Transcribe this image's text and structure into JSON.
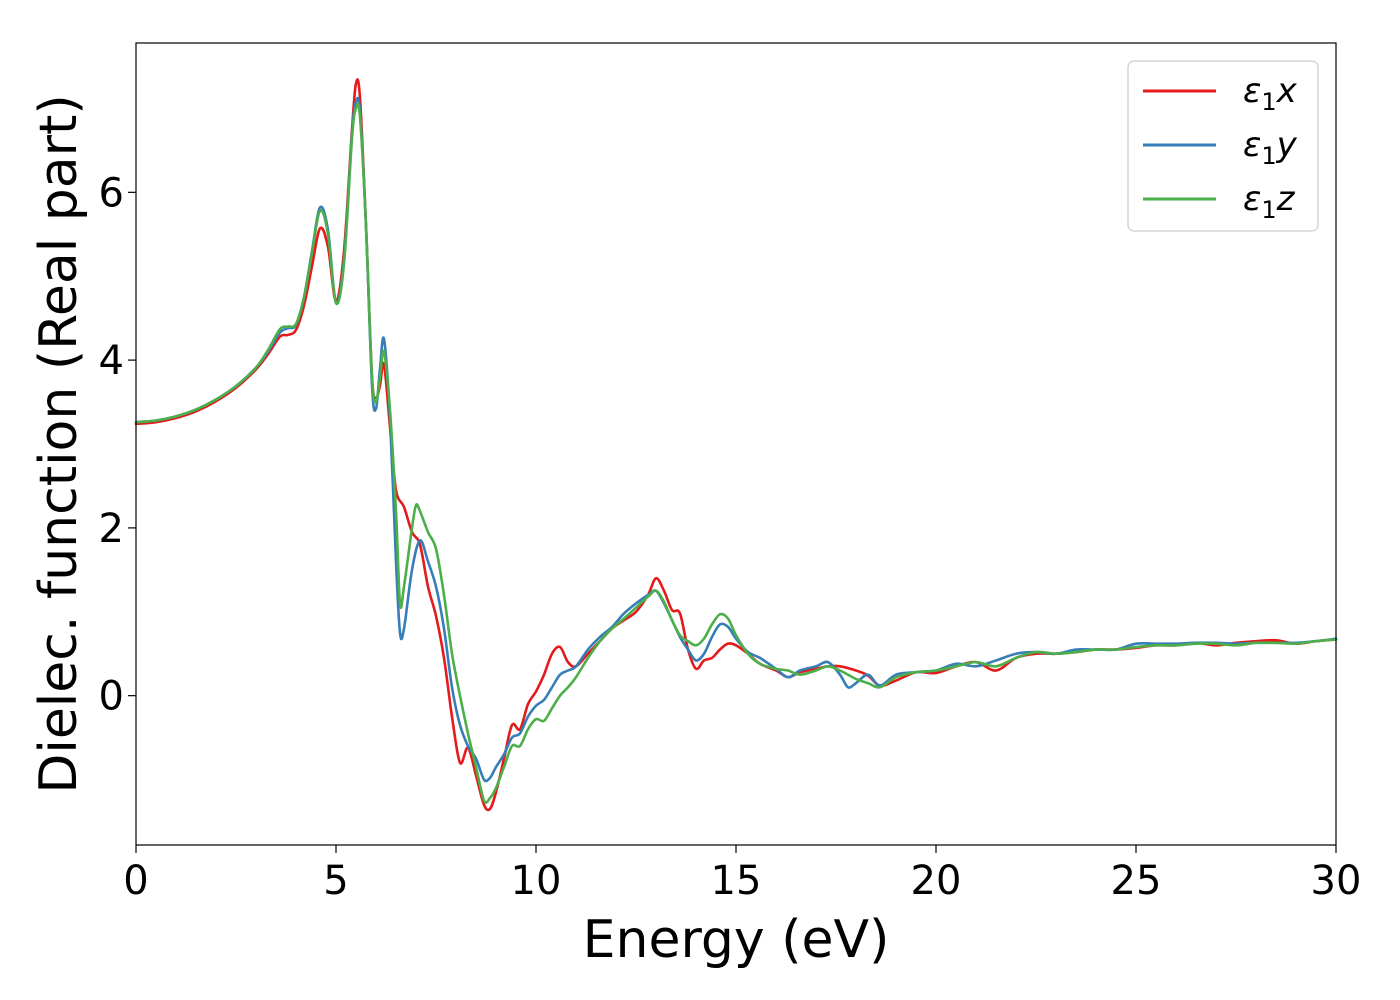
{
  "chart_data": {
    "type": "line",
    "title": "",
    "xlabel": "Energy (eV)",
    "ylabel": "Dielec. function (Real part)",
    "xlim": [
      0,
      30
    ],
    "ylim": [
      -1.78,
      7.78
    ],
    "xticks": [
      0,
      5,
      10,
      15,
      20,
      25,
      30
    ],
    "yticks": [
      0,
      2,
      4,
      6
    ],
    "grid": false,
    "legend_position": "top-right",
    "series": [
      {
        "name": "ε1x",
        "legend": {
          "base": "ε",
          "sub": "1",
          "suffix": "x"
        },
        "color": "#e41a1c",
        "x": [
          0,
          0.5,
          1,
          1.5,
          2,
          2.5,
          3,
          3.3,
          3.6,
          3.8,
          4.0,
          4.2,
          4.4,
          4.6,
          4.8,
          5.0,
          5.2,
          5.4,
          5.5,
          5.6,
          5.75,
          5.9,
          6.0,
          6.1,
          6.2,
          6.35,
          6.5,
          6.7,
          6.9,
          7.1,
          7.3,
          7.5,
          7.7,
          7.9,
          8.1,
          8.3,
          8.5,
          8.7,
          8.85,
          9.0,
          9.2,
          9.4,
          9.6,
          9.8,
          10.0,
          10.2,
          10.4,
          10.6,
          10.8,
          11.0,
          11.3,
          11.6,
          11.9,
          12.2,
          12.5,
          12.8,
          13.0,
          13.2,
          13.4,
          13.6,
          13.8,
          14.0,
          14.2,
          14.4,
          14.6,
          14.8,
          15.0,
          15.3,
          15.6,
          16.0,
          16.3,
          16.6,
          17.0,
          17.3,
          17.6,
          18.0,
          18.3,
          18.6,
          19.0,
          19.5,
          20.0,
          20.5,
          21.0,
          21.5,
          22.0,
          22.5,
          23.0,
          23.5,
          24.0,
          24.5,
          25.0,
          25.5,
          26.0,
          26.5,
          27.0,
          27.5,
          28.0,
          28.5,
          29.0,
          29.5,
          30.0
        ],
        "y": [
          3.24,
          3.26,
          3.31,
          3.39,
          3.51,
          3.67,
          3.89,
          4.07,
          4.28,
          4.3,
          4.36,
          4.65,
          5.12,
          5.57,
          5.35,
          4.7,
          5.3,
          6.75,
          7.3,
          7.12,
          5.6,
          3.8,
          3.55,
          3.7,
          3.95,
          3.2,
          2.45,
          2.25,
          1.95,
          1.8,
          1.3,
          0.95,
          0.45,
          -0.25,
          -0.8,
          -0.62,
          -0.95,
          -1.3,
          -1.35,
          -1.15,
          -0.75,
          -0.35,
          -0.4,
          -0.1,
          0.05,
          0.25,
          0.5,
          0.58,
          0.4,
          0.35,
          0.5,
          0.65,
          0.8,
          0.9,
          1.0,
          1.2,
          1.4,
          1.25,
          1.02,
          0.98,
          0.55,
          0.32,
          0.42,
          0.45,
          0.55,
          0.62,
          0.6,
          0.5,
          0.38,
          0.3,
          0.22,
          0.28,
          0.32,
          0.35,
          0.35,
          0.3,
          0.24,
          0.12,
          0.18,
          0.28,
          0.27,
          0.35,
          0.4,
          0.3,
          0.45,
          0.5,
          0.5,
          0.52,
          0.55,
          0.55,
          0.57,
          0.6,
          0.6,
          0.63,
          0.6,
          0.63,
          0.65,
          0.66,
          0.62,
          0.65,
          0.67
        ]
      },
      {
        "name": "ε1y",
        "legend": {
          "base": "ε",
          "sub": "1",
          "suffix": "y"
        },
        "color": "#377eb8",
        "x": [
          0,
          0.5,
          1,
          1.5,
          2,
          2.5,
          3,
          3.3,
          3.6,
          3.8,
          4.0,
          4.2,
          4.4,
          4.6,
          4.8,
          5.0,
          5.2,
          5.4,
          5.5,
          5.6,
          5.75,
          5.9,
          6.0,
          6.1,
          6.2,
          6.35,
          6.5,
          6.6,
          6.7,
          6.9,
          7.1,
          7.3,
          7.5,
          7.7,
          7.9,
          8.1,
          8.3,
          8.5,
          8.7,
          8.85,
          9.0,
          9.2,
          9.4,
          9.6,
          9.8,
          10.0,
          10.2,
          10.4,
          10.6,
          10.8,
          11.0,
          11.3,
          11.6,
          11.9,
          12.2,
          12.5,
          12.8,
          13.0,
          13.2,
          13.4,
          13.6,
          13.8,
          14.0,
          14.2,
          14.4,
          14.6,
          14.8,
          15.0,
          15.3,
          15.6,
          16.0,
          16.3,
          16.6,
          17.0,
          17.3,
          17.6,
          17.8,
          18.0,
          18.3,
          18.6,
          19.0,
          19.5,
          20.0,
          20.5,
          21.0,
          21.5,
          22.0,
          22.5,
          23.0,
          23.5,
          24.0,
          24.5,
          25.0,
          25.5,
          26.0,
          26.5,
          27.0,
          27.5,
          28.0,
          28.5,
          29.0,
          29.5,
          30.0
        ],
        "y": [
          3.26,
          3.28,
          3.33,
          3.41,
          3.53,
          3.69,
          3.91,
          4.1,
          4.33,
          4.38,
          4.42,
          4.75,
          5.3,
          5.82,
          5.55,
          4.68,
          5.2,
          6.7,
          7.08,
          6.95,
          5.6,
          3.7,
          3.42,
          3.9,
          4.25,
          3.3,
          1.6,
          0.75,
          0.8,
          1.5,
          1.85,
          1.6,
          1.3,
          0.8,
          0.1,
          -0.35,
          -0.6,
          -0.75,
          -1.0,
          -0.98,
          -0.85,
          -0.7,
          -0.5,
          -0.45,
          -0.25,
          -0.12,
          -0.05,
          0.1,
          0.25,
          0.3,
          0.35,
          0.55,
          0.7,
          0.82,
          0.98,
          1.1,
          1.2,
          1.25,
          1.1,
          0.9,
          0.7,
          0.55,
          0.42,
          0.5,
          0.7,
          0.85,
          0.82,
          0.68,
          0.52,
          0.45,
          0.32,
          0.22,
          0.3,
          0.35,
          0.4,
          0.25,
          0.1,
          0.15,
          0.25,
          0.12,
          0.25,
          0.28,
          0.3,
          0.38,
          0.35,
          0.42,
          0.5,
          0.52,
          0.5,
          0.55,
          0.55,
          0.55,
          0.62,
          0.62,
          0.62,
          0.63,
          0.63,
          0.62,
          0.63,
          0.63,
          0.63,
          0.65,
          0.68
        ]
      },
      {
        "name": "ε1z",
        "legend": {
          "base": "ε",
          "sub": "1",
          "suffix": "z"
        },
        "color": "#4daf4a",
        "x": [
          0,
          0.5,
          1,
          1.5,
          2,
          2.5,
          3,
          3.3,
          3.6,
          3.8,
          4.0,
          4.2,
          4.4,
          4.6,
          4.8,
          5.0,
          5.2,
          5.4,
          5.5,
          5.6,
          5.75,
          5.9,
          6.0,
          6.1,
          6.2,
          6.35,
          6.5,
          6.6,
          6.7,
          6.9,
          7.0,
          7.1,
          7.3,
          7.5,
          7.7,
          7.9,
          8.1,
          8.3,
          8.5,
          8.7,
          8.85,
          9.0,
          9.2,
          9.4,
          9.6,
          9.8,
          10.0,
          10.2,
          10.4,
          10.6,
          10.8,
          11.0,
          11.3,
          11.6,
          11.9,
          12.2,
          12.5,
          12.8,
          13.0,
          13.2,
          13.4,
          13.6,
          13.8,
          14.0,
          14.2,
          14.4,
          14.6,
          14.8,
          15.0,
          15.3,
          15.6,
          16.0,
          16.3,
          16.6,
          17.0,
          17.3,
          17.6,
          18.0,
          18.3,
          18.6,
          19.0,
          19.5,
          20.0,
          20.5,
          21.0,
          21.5,
          22.0,
          22.5,
          23.0,
          23.5,
          24.0,
          24.5,
          25.0,
          25.5,
          26.0,
          26.5,
          27.0,
          27.5,
          28.0,
          28.5,
          29.0,
          29.5,
          30.0
        ],
        "y": [
          3.26,
          3.28,
          3.33,
          3.41,
          3.53,
          3.69,
          3.91,
          4.12,
          4.37,
          4.4,
          4.43,
          4.75,
          5.28,
          5.78,
          5.5,
          4.68,
          5.15,
          6.65,
          7.0,
          6.9,
          5.6,
          3.8,
          3.5,
          3.8,
          4.1,
          3.4,
          2.2,
          1.1,
          1.3,
          2.0,
          2.27,
          2.2,
          1.95,
          1.75,
          1.2,
          0.5,
          0.0,
          -0.45,
          -0.85,
          -1.25,
          -1.22,
          -1.1,
          -0.85,
          -0.6,
          -0.6,
          -0.4,
          -0.28,
          -0.3,
          -0.15,
          0.0,
          0.1,
          0.22,
          0.45,
          0.65,
          0.8,
          0.92,
          1.05,
          1.18,
          1.25,
          1.12,
          0.9,
          0.72,
          0.65,
          0.6,
          0.68,
          0.85,
          0.97,
          0.92,
          0.72,
          0.5,
          0.38,
          0.32,
          0.3,
          0.25,
          0.3,
          0.35,
          0.3,
          0.2,
          0.15,
          0.1,
          0.22,
          0.28,
          0.3,
          0.35,
          0.4,
          0.35,
          0.45,
          0.52,
          0.5,
          0.52,
          0.55,
          0.55,
          0.58,
          0.6,
          0.6,
          0.62,
          0.62,
          0.6,
          0.63,
          0.63,
          0.62,
          0.65,
          0.67
        ]
      }
    ]
  }
}
